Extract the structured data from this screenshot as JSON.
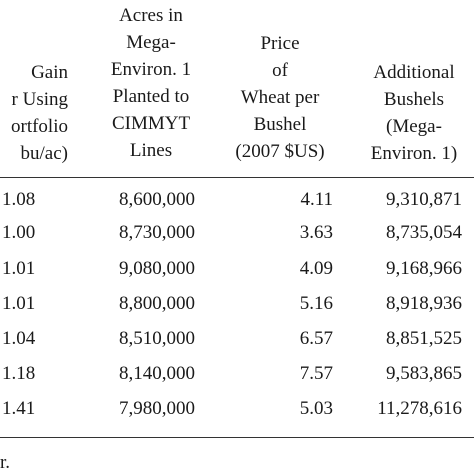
{
  "headers": {
    "gain": [
      "Gain",
      "r Using",
      "ortfolio",
      "bu/ac)"
    ],
    "acres": [
      "Acres in",
      "Mega-",
      "Environ. 1",
      "Planted to",
      "CIMMYT",
      "Lines"
    ],
    "price": [
      "Price",
      "of",
      "Wheat per",
      "Bushel",
      "(2007 $US)"
    ],
    "bushels": [
      "Additional",
      "Bushels",
      "(Mega-",
      "Environ. 1)"
    ]
  },
  "rows": [
    {
      "gain": "1.08",
      "acres": "8,600,000",
      "price": "4.11",
      "bushels": "9,310,871"
    },
    {
      "gain": "1.00",
      "acres": "8,730,000",
      "price": "3.63",
      "bushels": "8,735,054"
    },
    {
      "gain": "1.01",
      "acres": "9,080,000",
      "price": "4.09",
      "bushels": "9,168,966"
    },
    {
      "gain": "1.01",
      "acres": "8,800,000",
      "price": "5.16",
      "bushels": "8,918,936"
    },
    {
      "gain": "1.04",
      "acres": "8,510,000",
      "price": "6.57",
      "bushels": "8,851,525"
    },
    {
      "gain": "1.18",
      "acres": "8,140,000",
      "price": "7.57",
      "bushels": "9,583,865"
    },
    {
      "gain": "1.41",
      "acres": "7,980,000",
      "price": "5.03",
      "bushels": "11,278,616"
    }
  ],
  "footnote": "r."
}
